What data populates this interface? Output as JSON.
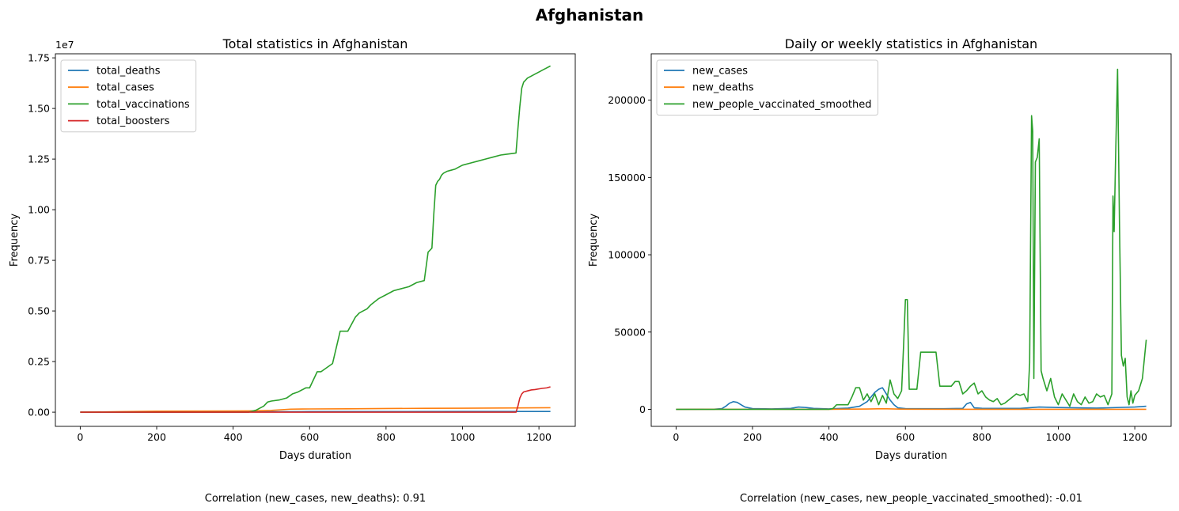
{
  "figure": {
    "title": "Afghanistan",
    "colors": {
      "blue": "#1f77b4",
      "orange": "#ff7f0e",
      "green": "#2ca02c",
      "red": "#d62728"
    }
  },
  "chart_data": [
    {
      "type": "line",
      "title": "Total statistics in Afghanistan",
      "xlabel": "Days duration",
      "ylabel": "Frequency",
      "y_offset_text": "1e7",
      "xlim": [
        -65,
        1295
      ],
      "ylim": [
        -0.07,
        1.77
      ],
      "y_unit_scale": 10000000,
      "xticks": [
        0,
        200,
        400,
        600,
        800,
        1000,
        1200
      ],
      "xtick_labels": [
        "0",
        "200",
        "400",
        "600",
        "800",
        "1000",
        "1200"
      ],
      "yticks": [
        0,
        0.25,
        0.5,
        0.75,
        1.0,
        1.25,
        1.5,
        1.75
      ],
      "ytick_labels": [
        "0.00",
        "0.25",
        "0.50",
        "0.75",
        "1.00",
        "1.25",
        "1.50",
        "1.75"
      ],
      "legend_position": "upper-left",
      "note": "Correlation (new_cases, new_deaths): 0.91",
      "series": [
        {
          "name": "total_deaths",
          "color": "#1f77b4",
          "x": [
            0,
            100,
            200,
            400,
            600,
            800,
            1000,
            1230
          ],
          "y": [
            0,
            0.0005,
            0.001,
            0.002,
            0.0028,
            0.0032,
            0.0035,
            0.0036
          ]
        },
        {
          "name": "total_cases",
          "color": "#ff7f0e",
          "x": [
            0,
            100,
            200,
            300,
            400,
            450,
            500,
            550,
            600,
            700,
            800,
            900,
            1000,
            1100,
            1230
          ],
          "y": [
            0,
            0.0025,
            0.005,
            0.0055,
            0.006,
            0.0065,
            0.009,
            0.015,
            0.016,
            0.0165,
            0.018,
            0.019,
            0.0195,
            0.0205,
            0.022
          ]
        },
        {
          "name": "total_vaccinations",
          "color": "#2ca02c",
          "x": [
            0,
            440,
            450,
            460,
            470,
            480,
            490,
            500,
            520,
            540,
            555,
            570,
            590,
            600,
            620,
            630,
            660,
            680,
            700,
            720,
            730,
            740,
            750,
            760,
            780,
            800,
            820,
            840,
            860,
            880,
            900,
            910,
            920,
            925,
            930,
            935,
            940,
            945,
            950,
            960,
            970,
            980,
            990,
            1000,
            1020,
            1040,
            1060,
            1080,
            1100,
            1120,
            1140,
            1145,
            1150,
            1155,
            1160,
            1165,
            1170,
            1180,
            1190,
            1200,
            1210,
            1220,
            1230
          ],
          "y": [
            0,
            0,
            0.005,
            0.01,
            0.02,
            0.03,
            0.05,
            0.055,
            0.06,
            0.07,
            0.09,
            0.1,
            0.12,
            0.12,
            0.2,
            0.2,
            0.24,
            0.4,
            0.4,
            0.47,
            0.49,
            0.5,
            0.51,
            0.53,
            0.56,
            0.58,
            0.6,
            0.61,
            0.62,
            0.64,
            0.65,
            0.79,
            0.81,
            0.98,
            1.12,
            1.14,
            1.15,
            1.17,
            1.18,
            1.19,
            1.195,
            1.2,
            1.21,
            1.22,
            1.23,
            1.24,
            1.25,
            1.26,
            1.27,
            1.275,
            1.28,
            1.4,
            1.51,
            1.6,
            1.63,
            1.64,
            1.65,
            1.66,
            1.67,
            1.68,
            1.69,
            1.7,
            1.71
          ]
        },
        {
          "name": "total_boosters",
          "color": "#d62728",
          "x": [
            0,
            1140,
            1145,
            1150,
            1155,
            1160,
            1170,
            1180,
            1190,
            1200,
            1210,
            1220,
            1230
          ],
          "y": [
            0,
            0,
            0.03,
            0.07,
            0.09,
            0.1,
            0.105,
            0.11,
            0.112,
            0.115,
            0.118,
            0.12,
            0.125
          ]
        }
      ]
    },
    {
      "type": "line",
      "title": "Daily or weekly statistics in Afghanistan",
      "xlabel": "Days duration",
      "ylabel": "Frequency",
      "xlim": [
        -65,
        1295
      ],
      "ylim": [
        -11000,
        230000
      ],
      "xticks": [
        0,
        200,
        400,
        600,
        800,
        1000,
        1200
      ],
      "xtick_labels": [
        "0",
        "200",
        "400",
        "600",
        "800",
        "1000",
        "1200"
      ],
      "yticks": [
        0,
        50000,
        100000,
        150000,
        200000
      ],
      "ytick_labels": [
        "0",
        "50000",
        "100000",
        "150000",
        "200000"
      ],
      "legend_position": "upper-left",
      "note": "Correlation (new_cases, new_people_vaccinated_smoothed): -0.01",
      "series": [
        {
          "name": "new_cases",
          "color": "#1f77b4",
          "x": [
            0,
            100,
            120,
            130,
            140,
            150,
            160,
            170,
            180,
            200,
            250,
            300,
            320,
            340,
            360,
            400,
            450,
            480,
            500,
            510,
            520,
            530,
            540,
            550,
            560,
            570,
            580,
            600,
            700,
            750,
            760,
            770,
            780,
            800,
            900,
            950,
            1000,
            1100,
            1200,
            1230
          ],
          "y": [
            0,
            100,
            500,
            2000,
            4000,
            5000,
            4500,
            3000,
            1500,
            500,
            300,
            600,
            1500,
            1200,
            600,
            300,
            800,
            2000,
            5000,
            8000,
            11000,
            13000,
            14000,
            10000,
            6000,
            3000,
            1000,
            500,
            400,
            600,
            3500,
            4500,
            1000,
            700,
            600,
            1500,
            1200,
            800,
            1500,
            2000
          ]
        },
        {
          "name": "new_deaths",
          "color": "#ff7f0e",
          "x": [
            0,
            200,
            400,
            500,
            540,
            600,
            800,
            1000,
            1230
          ],
          "y": [
            0,
            60,
            30,
            200,
            400,
            100,
            30,
            20,
            10
          ]
        },
        {
          "name": "new_people_vaccinated_smoothed",
          "color": "#2ca02c",
          "x": [
            0,
            400,
            410,
            420,
            450,
            460,
            470,
            480,
            490,
            500,
            510,
            520,
            530,
            540,
            550,
            560,
            570,
            580,
            590,
            595,
            600,
            605,
            610,
            620,
            630,
            640,
            650,
            660,
            680,
            690,
            700,
            720,
            730,
            740,
            750,
            760,
            770,
            780,
            790,
            800,
            810,
            820,
            830,
            840,
            850,
            860,
            870,
            880,
            890,
            900,
            910,
            920,
            925,
            930,
            933,
            936,
            940,
            945,
            950,
            955,
            960,
            970,
            980,
            990,
            1000,
            1010,
            1020,
            1030,
            1040,
            1050,
            1060,
            1070,
            1080,
            1090,
            1100,
            1110,
            1120,
            1130,
            1140,
            1143,
            1146,
            1150,
            1155,
            1160,
            1165,
            1170,
            1175,
            1180,
            1185,
            1190,
            1195,
            1200,
            1210,
            1220,
            1230
          ],
          "y": [
            0,
            0,
            500,
            3000,
            3000,
            8000,
            14000,
            14000,
            6000,
            10000,
            5000,
            10000,
            3000,
            9000,
            4000,
            19000,
            10000,
            7000,
            12000,
            40000,
            71000,
            71000,
            13000,
            13000,
            13000,
            37000,
            37000,
            37000,
            37000,
            15000,
            15000,
            15000,
            18000,
            18000,
            10000,
            12000,
            15000,
            17000,
            10000,
            12000,
            8000,
            6000,
            5000,
            7000,
            3000,
            4000,
            6000,
            8000,
            10000,
            9000,
            10000,
            5000,
            30000,
            190000,
            180000,
            20000,
            160000,
            163000,
            175000,
            25000,
            20000,
            12000,
            20000,
            8000,
            3000,
            10000,
            6000,
            2000,
            10000,
            5000,
            3000,
            8000,
            4000,
            5000,
            10000,
            8000,
            9000,
            3000,
            10000,
            138000,
            115000,
            165000,
            220000,
            120000,
            35000,
            28000,
            33000,
            8000,
            3000,
            12000,
            4000,
            9000,
            12000,
            20000,
            45000
          ]
        }
      ]
    }
  ]
}
